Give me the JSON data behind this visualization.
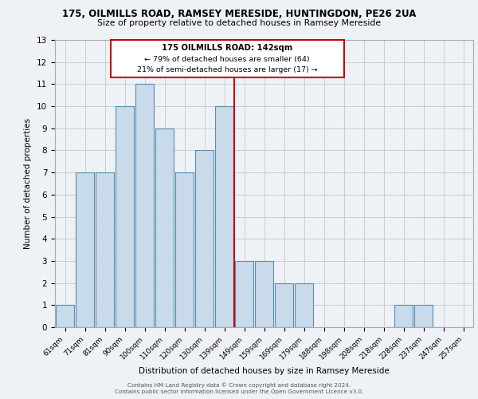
{
  "title_line1": "175, OILMILLS ROAD, RAMSEY MERESIDE, HUNTINGDON, PE26 2UA",
  "title_line2": "Size of property relative to detached houses in Ramsey Mereside",
  "xlabel": "Distribution of detached houses by size in Ramsey Mereside",
  "ylabel": "Number of detached properties",
  "categories": [
    "61sqm",
    "71sqm",
    "81sqm",
    "90sqm",
    "100sqm",
    "110sqm",
    "120sqm",
    "130sqm",
    "139sqm",
    "149sqm",
    "159sqm",
    "169sqm",
    "179sqm",
    "188sqm",
    "198sqm",
    "208sqm",
    "218sqm",
    "228sqm",
    "237sqm",
    "247sqm",
    "257sqm"
  ],
  "values": [
    1,
    7,
    7,
    10,
    11,
    9,
    7,
    8,
    10,
    3,
    3,
    2,
    2,
    0,
    0,
    0,
    0,
    1,
    1,
    0,
    0
  ],
  "bar_color": "#c9daea",
  "bar_edge_color": "#5a8db0",
  "vline_x": 8.5,
  "vline_color": "#cc0000",
  "annotation_title": "175 OILMILLS ROAD: 142sqm",
  "annotation_line2": "← 79% of detached houses are smaller (64)",
  "annotation_line3": "21% of semi-detached houses are larger (17) →",
  "annotation_box_color": "#cc0000",
  "ylim": [
    0,
    13
  ],
  "yticks": [
    0,
    1,
    2,
    3,
    4,
    5,
    6,
    7,
    8,
    9,
    10,
    11,
    12,
    13
  ],
  "grid_color": "#cccccc",
  "bg_color": "#eef2f7",
  "footnote1": "Contains HM Land Registry data © Crown copyright and database right 2024.",
  "footnote2": "Contains public sector information licensed under the Open Government Licence v3.0."
}
